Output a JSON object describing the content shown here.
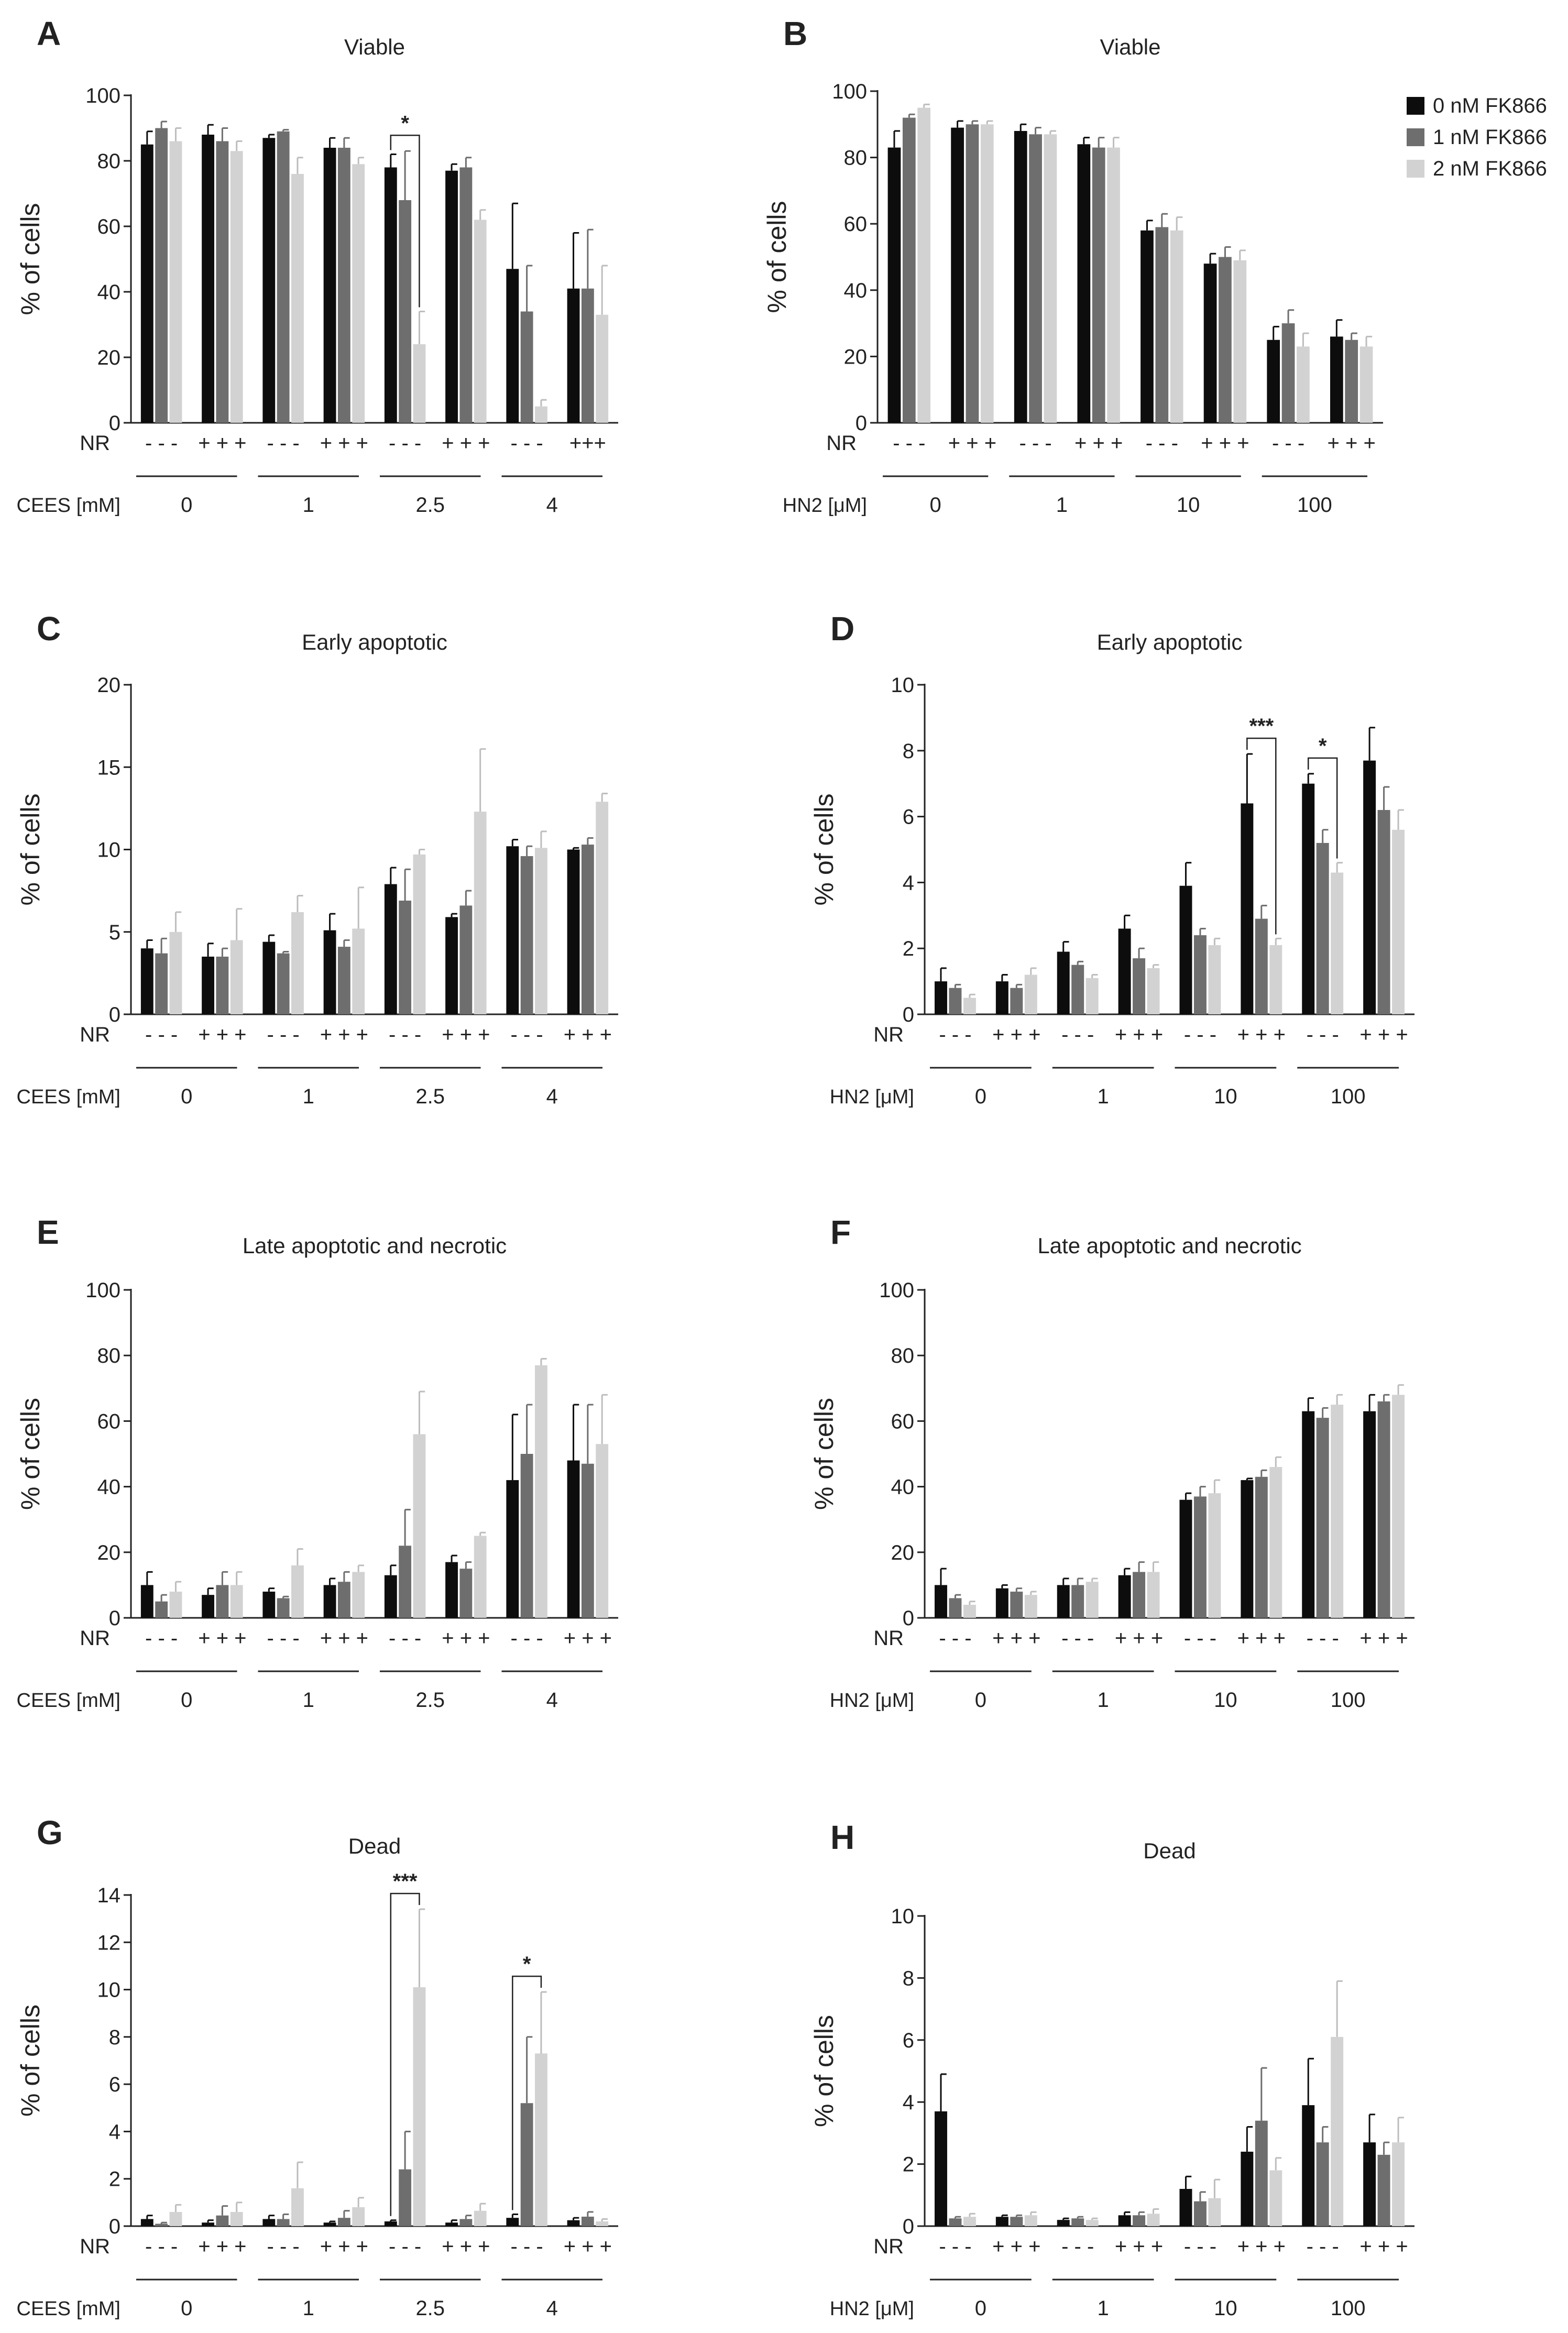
{
  "legend": {
    "entries": [
      "0 nM FK866",
      "1 nM FK866",
      "2 nM FK866"
    ],
    "colors": [
      "#0d0d0d",
      "#6e6e6e",
      "#d2d2d2"
    ]
  },
  "chart_data": [
    {
      "id": "A",
      "type": "bar",
      "title": "Viable",
      "ylabel": "% of cells",
      "ylim": [
        0,
        100
      ],
      "yticks": [
        0,
        20,
        40,
        60,
        80,
        100
      ],
      "treatment_label": "CEES [mM]",
      "groups": [
        "0",
        "1",
        "2.5",
        "4"
      ],
      "nr_label": "NR",
      "nr_signs": [
        "- - -",
        "+ + +",
        "- - -",
        "+ + +",
        "- - -",
        "+ + +",
        "- - -",
        "+++"
      ],
      "series": [
        {
          "name": "0 nM FK866",
          "values": [
            85,
            88,
            87,
            84,
            78,
            77,
            47,
            41
          ],
          "errors": [
            4,
            3,
            1,
            3,
            4,
            2,
            20,
            17
          ]
        },
        {
          "name": "1 nM FK866",
          "values": [
            90,
            86,
            89,
            84,
            68,
            78,
            34,
            41
          ],
          "errors": [
            2,
            4,
            0.5,
            3,
            15,
            3,
            14,
            18
          ]
        },
        {
          "name": "2 nM FK866",
          "values": [
            86,
            83,
            76,
            79,
            24,
            62,
            5,
            33
          ],
          "errors": [
            4,
            3,
            5,
            2,
            10,
            3,
            2,
            15
          ]
        }
      ],
      "significance": [
        {
          "label": "*",
          "cluster": 4,
          "from": 0,
          "to": 2
        }
      ]
    },
    {
      "id": "B",
      "type": "bar",
      "title": "Viable",
      "ylabel": "% of cells",
      "ylim": [
        0,
        100
      ],
      "yticks": [
        0,
        20,
        40,
        60,
        80,
        100
      ],
      "treatment_label": "HN2 [μM]",
      "groups": [
        "0",
        "1",
        "10",
        "100"
      ],
      "nr_label": "NR",
      "nr_signs": [
        "- - -",
        "+ + +",
        "- - -",
        "+ + +",
        "- - -",
        "+ + +",
        "- - -",
        "+ + +"
      ],
      "series": [
        {
          "name": "0 nM FK866",
          "values": [
            83,
            89,
            88,
            84,
            58,
            48,
            25,
            26
          ],
          "errors": [
            5,
            2,
            2,
            2,
            3,
            3,
            4,
            5
          ]
        },
        {
          "name": "1 nM FK866",
          "values": [
            92,
            90,
            87,
            83,
            59,
            50,
            30,
            25
          ],
          "errors": [
            1,
            1,
            2,
            3,
            4,
            3,
            4,
            2
          ]
        },
        {
          "name": "2 nM FK866",
          "values": [
            95,
            90,
            87,
            83,
            58,
            49,
            23,
            23
          ],
          "errors": [
            1,
            1,
            1,
            3,
            4,
            3,
            4,
            3
          ]
        }
      ],
      "significance": []
    },
    {
      "id": "C",
      "type": "bar",
      "title": "Early apoptotic",
      "ylabel": "% of cells",
      "ylim": [
        0,
        20
      ],
      "yticks": [
        0,
        5,
        10,
        15,
        20
      ],
      "treatment_label": "CEES [mM]",
      "groups": [
        "0",
        "1",
        "2.5",
        "4"
      ],
      "nr_label": "NR",
      "nr_signs": [
        "- - -",
        "+ + +",
        "- - -",
        "+ + +",
        "- - -",
        "+ + +",
        "- - -",
        "+ + +"
      ],
      "series": [
        {
          "name": "0 nM FK866",
          "values": [
            4.0,
            3.5,
            4.4,
            5.1,
            7.9,
            5.9,
            10.2,
            10.0
          ],
          "errors": [
            0.5,
            0.8,
            0.4,
            1.0,
            1.0,
            0.2,
            0.4,
            0.1
          ]
        },
        {
          "name": "1 nM FK866",
          "values": [
            3.7,
            3.5,
            3.7,
            4.1,
            6.9,
            6.6,
            9.6,
            10.3
          ],
          "errors": [
            0.9,
            0.5,
            0.1,
            0.4,
            1.9,
            0.9,
            0.6,
            0.4
          ]
        },
        {
          "name": "2 nM FK866",
          "values": [
            5.0,
            4.5,
            6.2,
            5.2,
            9.7,
            12.3,
            10.1,
            12.9
          ],
          "errors": [
            1.2,
            1.9,
            1.0,
            2.5,
            0.3,
            3.8,
            1.0,
            0.5
          ]
        }
      ],
      "significance": []
    },
    {
      "id": "D",
      "type": "bar",
      "title": "Early apoptotic",
      "ylabel": "% of cells",
      "ylim": [
        0,
        10
      ],
      "yticks": [
        0,
        2,
        4,
        6,
        8,
        10
      ],
      "treatment_label": "HN2 [μM]",
      "groups": [
        "0",
        "1",
        "10",
        "100"
      ],
      "nr_label": "NR",
      "nr_signs": [
        "- - -",
        "+ + +",
        "- - -",
        "+ + +",
        "- - -",
        "+ + +",
        "- - -",
        "+ + +"
      ],
      "series": [
        {
          "name": "0 nM FK866",
          "values": [
            1.0,
            1.0,
            1.9,
            2.6,
            3.9,
            6.4,
            7.0,
            7.7
          ],
          "errors": [
            0.4,
            0.2,
            0.3,
            0.4,
            0.7,
            1.5,
            0.3,
            1.0
          ]
        },
        {
          "name": "1 nM FK866",
          "values": [
            0.8,
            0.8,
            1.5,
            1.7,
            2.4,
            2.9,
            5.2,
            6.2
          ],
          "errors": [
            0.1,
            0.1,
            0.1,
            0.3,
            0.2,
            0.4,
            0.4,
            0.7
          ]
        },
        {
          "name": "2 nM FK866",
          "values": [
            0.5,
            1.2,
            1.1,
            1.4,
            2.1,
            2.1,
            4.3,
            5.6
          ],
          "errors": [
            0.1,
            0.2,
            0.1,
            0.1,
            0.2,
            0.2,
            0.3,
            0.6
          ]
        }
      ],
      "significance": [
        {
          "label": "***",
          "cluster": 5,
          "from": 0,
          "to": 2
        },
        {
          "label": "*",
          "cluster": 6,
          "from": 0,
          "to": 2
        }
      ]
    },
    {
      "id": "E",
      "type": "bar",
      "title": "Late apoptotic and necrotic",
      "ylabel": "% of cells",
      "ylim": [
        0,
        100
      ],
      "yticks": [
        0,
        20,
        40,
        60,
        80,
        100
      ],
      "treatment_label": "CEES [mM]",
      "groups": [
        "0",
        "1",
        "2.5",
        "4"
      ],
      "nr_label": "NR",
      "nr_signs": [
        "- - -",
        "+ + +",
        "- - -",
        "+ + +",
        "- - -",
        "+ + +",
        "- - -",
        "+ + +"
      ],
      "series": [
        {
          "name": "0 nM FK866",
          "values": [
            10,
            7,
            8,
            10,
            13,
            17,
            42,
            48
          ],
          "errors": [
            4,
            2,
            1,
            2,
            3,
            2,
            20,
            17
          ]
        },
        {
          "name": "1 nM FK866",
          "values": [
            5,
            10,
            6,
            11,
            22,
            15,
            50,
            47
          ],
          "errors": [
            2,
            4,
            0.5,
            3,
            11,
            2,
            15,
            18
          ]
        },
        {
          "name": "2 nM FK866",
          "values": [
            8,
            10,
            16,
            14,
            56,
            25,
            77,
            53
          ],
          "errors": [
            3,
            4,
            5,
            2,
            13,
            1,
            2,
            15
          ]
        }
      ],
      "significance": []
    },
    {
      "id": "F",
      "type": "bar",
      "title": "Late apoptotic and necrotic",
      "ylabel": "% of cells",
      "ylim": [
        0,
        100
      ],
      "yticks": [
        0,
        20,
        40,
        60,
        80,
        100
      ],
      "treatment_label": "HN2 [μM]",
      "groups": [
        "0",
        "1",
        "10",
        "100"
      ],
      "nr_label": "NR",
      "nr_signs": [
        "- - -",
        "+ + +",
        "- - -",
        "+ + +",
        "- - -",
        "+ + +",
        "- - -",
        "+ + +"
      ],
      "series": [
        {
          "name": "0 nM FK866",
          "values": [
            10,
            9,
            10,
            13,
            36,
            42,
            63,
            63
          ],
          "errors": [
            5,
            1,
            2,
            2,
            2,
            0.5,
            4,
            5
          ]
        },
        {
          "name": "1 nM FK866",
          "values": [
            6,
            8,
            10,
            14,
            37,
            43,
            61,
            66
          ],
          "errors": [
            1,
            1,
            2,
            3,
            3,
            2,
            3,
            2
          ]
        },
        {
          "name": "2 nM FK866",
          "values": [
            4,
            7,
            11,
            14,
            38,
            46,
            65,
            68
          ],
          "errors": [
            1,
            1,
            1,
            3,
            4,
            3,
            3,
            3
          ]
        }
      ],
      "significance": []
    },
    {
      "id": "G",
      "type": "bar",
      "title": "Dead",
      "ylabel": "% of cells",
      "ylim": [
        0,
        14
      ],
      "yticks": [
        0,
        2,
        4,
        6,
        8,
        10,
        12,
        14
      ],
      "treatment_label": "CEES [mM]",
      "groups": [
        "0",
        "1",
        "2.5",
        "4"
      ],
      "nr_label": "NR",
      "nr_signs": [
        "- - -",
        "+ + +",
        "- - -",
        "+ + +",
        "- - -",
        "+ + +",
        "- - -",
        "+ + +"
      ],
      "series": [
        {
          "name": "0 nM FK866",
          "values": [
            0.3,
            0.15,
            0.3,
            0.15,
            0.2,
            0.15,
            0.35,
            0.25
          ],
          "errors": [
            0.15,
            0.1,
            0.15,
            0.05,
            0.05,
            0.1,
            0.15,
            0.1
          ]
        },
        {
          "name": "1 nM FK866",
          "values": [
            0.1,
            0.45,
            0.3,
            0.35,
            2.4,
            0.3,
            5.2,
            0.4
          ],
          "errors": [
            0.05,
            0.4,
            0.2,
            0.3,
            1.6,
            0.15,
            2.8,
            0.2
          ]
        },
        {
          "name": "2 nM FK866",
          "values": [
            0.6,
            0.6,
            1.6,
            0.8,
            10.1,
            0.65,
            7.3,
            0.2
          ],
          "errors": [
            0.3,
            0.4,
            1.1,
            0.4,
            3.3,
            0.3,
            2.6,
            0.1
          ]
        }
      ],
      "significance": [
        {
          "label": "***",
          "cluster": 4,
          "from": 0,
          "to": 2
        },
        {
          "label": "*",
          "cluster": 6,
          "from": 0,
          "to": 2
        }
      ]
    },
    {
      "id": "H",
      "type": "bar",
      "title": "Dead",
      "ylabel": "% of cells",
      "ylim": [
        0,
        10
      ],
      "yticks": [
        0,
        2,
        4,
        6,
        8,
        10
      ],
      "treatment_label": "HN2 [μM]",
      "groups": [
        "0",
        "1",
        "10",
        "100"
      ],
      "nr_label": "NR",
      "nr_signs": [
        "- - -",
        "+ + +",
        "- - -",
        "+ + +",
        "- - -",
        "+ + +",
        "- - -",
        "+ + +"
      ],
      "series": [
        {
          "name": "0 nM FK866",
          "values": [
            3.7,
            0.3,
            0.2,
            0.35,
            1.2,
            2.4,
            3.9,
            2.7
          ],
          "errors": [
            1.2,
            0.05,
            0.05,
            0.1,
            0.4,
            0.8,
            1.5,
            0.9
          ]
        },
        {
          "name": "1 nM FK866",
          "values": [
            0.25,
            0.3,
            0.25,
            0.35,
            0.8,
            3.4,
            2.7,
            2.3
          ],
          "errors": [
            0.05,
            0.05,
            0.05,
            0.1,
            0.3,
            1.7,
            0.5,
            0.4
          ]
        },
        {
          "name": "2 nM FK866",
          "values": [
            0.3,
            0.35,
            0.2,
            0.4,
            0.9,
            1.8,
            6.1,
            2.7
          ],
          "errors": [
            0.1,
            0.1,
            0.05,
            0.15,
            0.6,
            0.4,
            1.8,
            0.8
          ]
        }
      ],
      "significance": []
    }
  ]
}
